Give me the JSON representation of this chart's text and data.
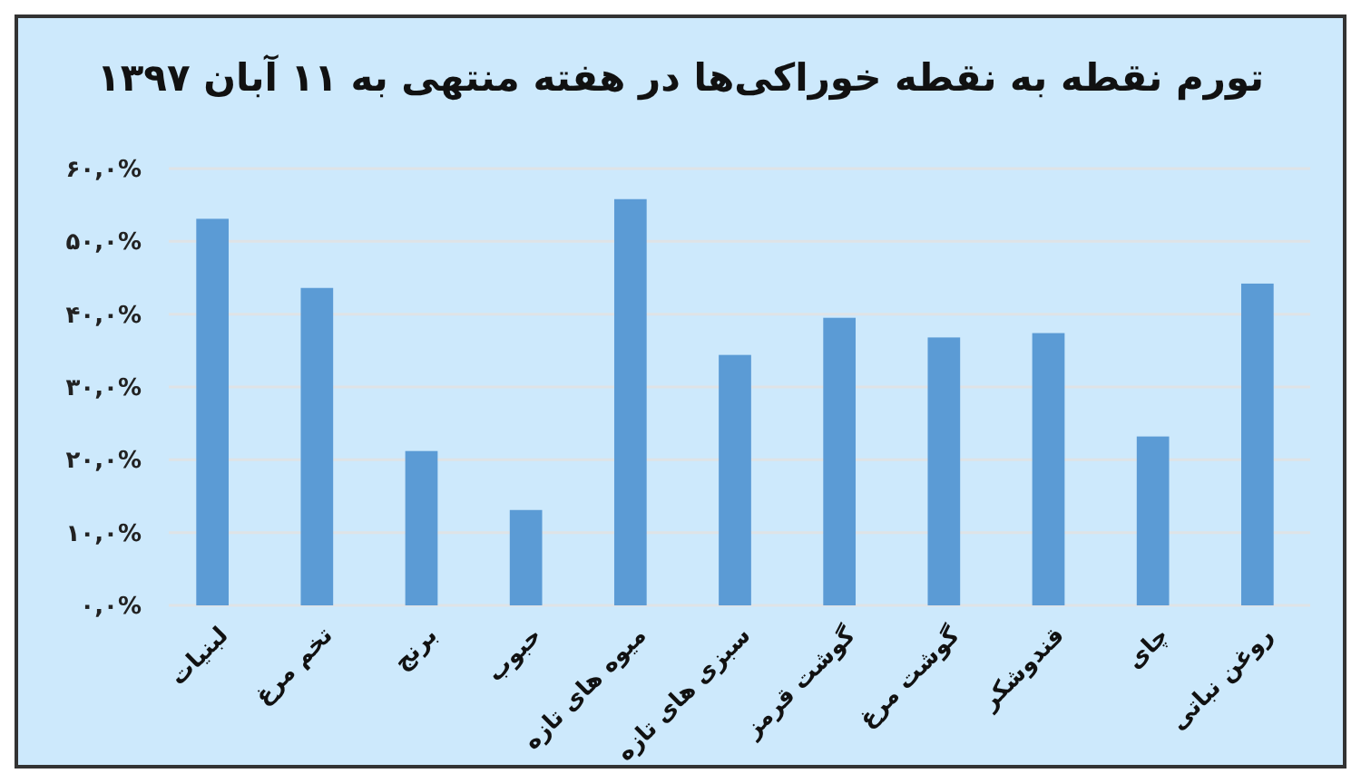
{
  "chart_data": {
    "type": "bar",
    "title": "تورم نقطه به نقطه خوراکی‌ها در هفته منتهی به ۱۱ آبان ۱۳۹۷",
    "categories": [
      "لبنیات",
      "تخم مرغ",
      "برنج",
      "حبوب",
      "میوه های تازه",
      "سبزی های تازه",
      "گوشت قرمز",
      "گوشت مرغ",
      "قندوشکر",
      "چای",
      "روغن نباتی"
    ],
    "values": [
      53.1,
      43.6,
      21.2,
      13.1,
      55.8,
      34.4,
      39.5,
      36.8,
      37.4,
      23.2,
      44.2
    ],
    "color": "#5b9bd5",
    "ylim": [
      0,
      60
    ],
    "yticks": [
      {
        "value": 0,
        "label": "۰,۰%"
      },
      {
        "value": 10,
        "label": "۱۰,۰%"
      },
      {
        "value": 20,
        "label": "۲۰,۰%"
      },
      {
        "value": 30,
        "label": "۳۰,۰%"
      },
      {
        "value": 40,
        "label": "۴۰,۰%"
      },
      {
        "value": 50,
        "label": "۵۰,۰%"
      },
      {
        "value": 60,
        "label": "۶۰,۰%"
      }
    ],
    "grid": "y"
  }
}
